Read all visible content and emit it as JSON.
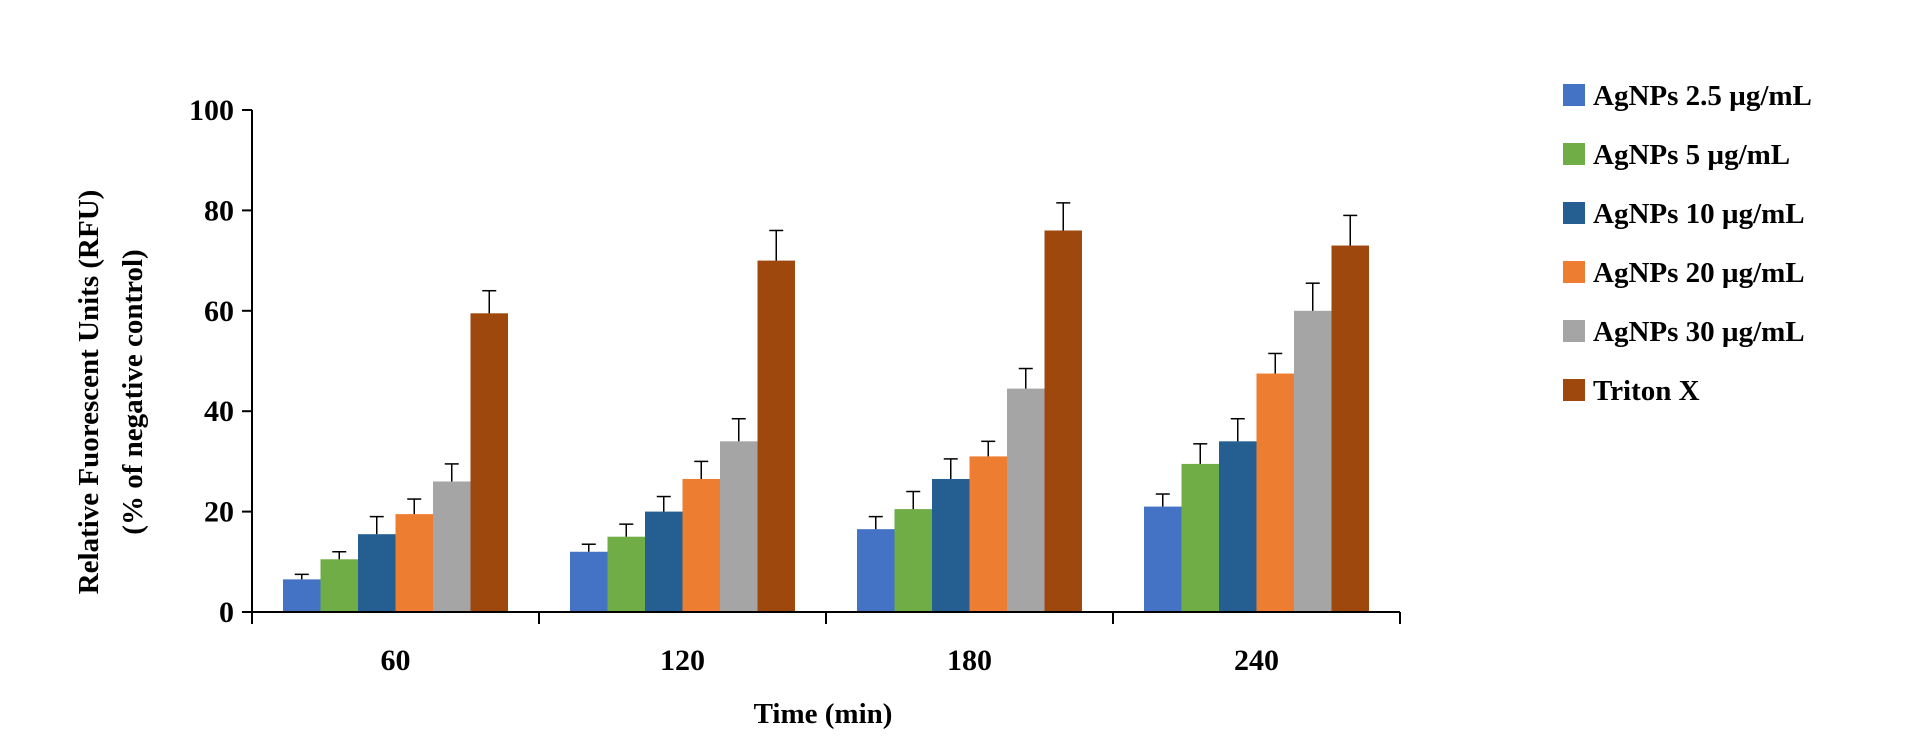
{
  "chart_data": {
    "type": "bar",
    "title": "",
    "xlabel": "Time (min)",
    "ylabel": "Relative Fuorescent Units (RFU)",
    "ylabel2": "(% of negative control)",
    "categories": [
      "60",
      "120",
      "180",
      "240"
    ],
    "ylim": [
      0,
      100
    ],
    "yticks": [
      "0",
      "20",
      "40",
      "60",
      "80",
      "100"
    ],
    "grid": false,
    "legend_position": "right",
    "series": [
      {
        "name": "AgNPs 2.5 µg/mL",
        "color": "#4472c4",
        "values": [
          6.5,
          12,
          16.5,
          21
        ],
        "errors": [
          1,
          1.5,
          2.5,
          2.5
        ]
      },
      {
        "name": "AgNPs 5 µg/mL",
        "color": "#70ad47",
        "values": [
          10.5,
          15,
          20.5,
          29.5
        ],
        "errors": [
          1.5,
          2.5,
          3.5,
          4
        ]
      },
      {
        "name": "AgNPs 10 µg/mL",
        "color": "#255e91",
        "values": [
          15.5,
          20,
          26.5,
          34
        ],
        "errors": [
          3.5,
          3,
          4,
          4.5
        ]
      },
      {
        "name": "AgNPs 20 µg/mL",
        "color": "#ed7d31",
        "values": [
          19.5,
          26.5,
          31,
          47.5
        ],
        "errors": [
          3,
          3.5,
          3,
          4
        ]
      },
      {
        "name": "AgNPs 30 µg/mL",
        "color": "#a5a5a5",
        "values": [
          26,
          34,
          44.5,
          60
        ],
        "errors": [
          3.5,
          4.5,
          4,
          5.5
        ]
      },
      {
        "name": "Triton X",
        "color": "#9e480e",
        "values": [
          59.5,
          70,
          76,
          73
        ],
        "errors": [
          4.5,
          6,
          5.5,
          6
        ]
      }
    ]
  }
}
